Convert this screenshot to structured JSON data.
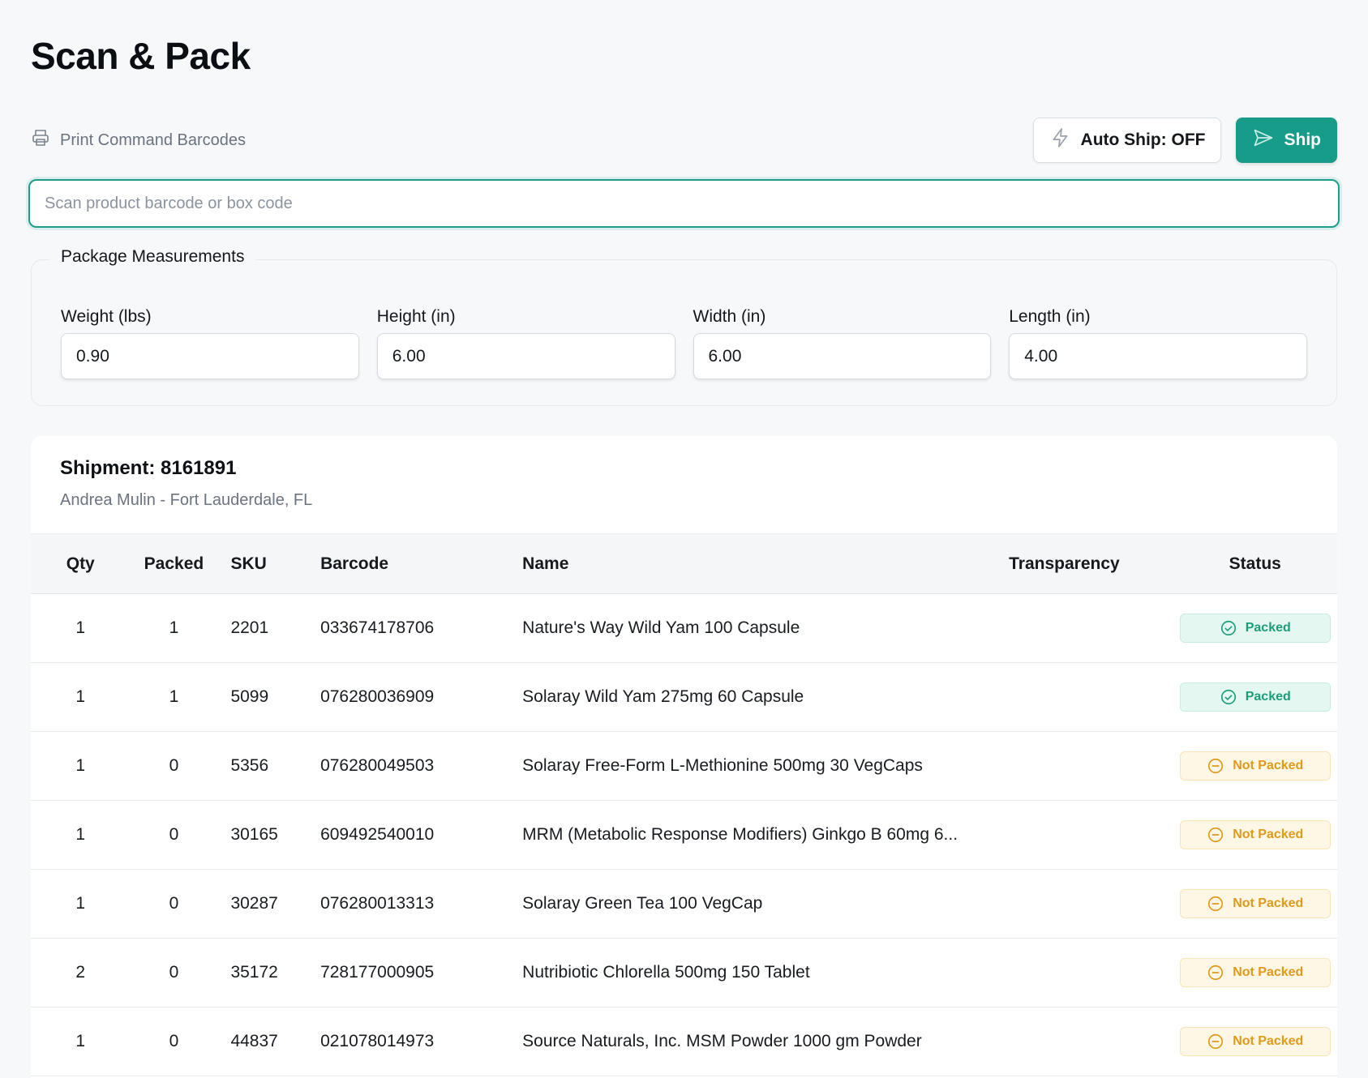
{
  "page": {
    "title": "Scan & Pack"
  },
  "toolbar": {
    "print_label": "Print Command Barcodes",
    "auto_ship_label": "Auto Ship: OFF",
    "ship_label": "Ship"
  },
  "scan": {
    "placeholder": "Scan product barcode or box code",
    "value": ""
  },
  "measurements": {
    "legend": "Package Measurements",
    "fields": [
      {
        "label": "Weight (lbs)",
        "value": "0.90"
      },
      {
        "label": "Height (in)",
        "value": "6.00"
      },
      {
        "label": "Width (in)",
        "value": "6.00"
      },
      {
        "label": "Length (in)",
        "value": "4.00"
      }
    ]
  },
  "shipment": {
    "title": "Shipment: 8161891",
    "subtitle": "Andrea Mulin - Fort Lauderdale, FL",
    "columns": [
      "Qty",
      "Packed",
      "SKU",
      "Barcode",
      "Name",
      "Transparency",
      "Status"
    ],
    "rows": [
      {
        "qty": "1",
        "packed": "1",
        "sku": "2201",
        "barcode": "033674178706",
        "name": "Nature's Way Wild Yam 100 Capsule",
        "transparency": "",
        "status": "Packed",
        "status_kind": "packed"
      },
      {
        "qty": "1",
        "packed": "1",
        "sku": "5099",
        "barcode": "076280036909",
        "name": "Solaray Wild Yam 275mg 60 Capsule",
        "transparency": "",
        "status": "Packed",
        "status_kind": "packed"
      },
      {
        "qty": "1",
        "packed": "0",
        "sku": "5356",
        "barcode": "076280049503",
        "name": "Solaray Free-Form L-Methionine 500mg 30 VegCaps",
        "transparency": "",
        "status": "Not Packed",
        "status_kind": "notpacked"
      },
      {
        "qty": "1",
        "packed": "0",
        "sku": "30165",
        "barcode": "609492540010",
        "name": "MRM (Metabolic Response Modifiers) Ginkgo B 60mg 6...",
        "transparency": "",
        "status": "Not Packed",
        "status_kind": "notpacked"
      },
      {
        "qty": "1",
        "packed": "0",
        "sku": "30287",
        "barcode": "076280013313",
        "name": "Solaray Green Tea 100 VegCap",
        "transparency": "",
        "status": "Not Packed",
        "status_kind": "notpacked"
      },
      {
        "qty": "2",
        "packed": "0",
        "sku": "35172",
        "barcode": "728177000905",
        "name": "Nutribiotic Chlorella 500mg 150 Tablet",
        "transparency": "",
        "status": "Not Packed",
        "status_kind": "notpacked"
      },
      {
        "qty": "1",
        "packed": "0",
        "sku": "44837",
        "barcode": "021078014973",
        "name": "Source Naturals, Inc. MSM Powder 1000 gm Powder",
        "transparency": "",
        "status": "Not Packed",
        "status_kind": "notpacked"
      }
    ]
  },
  "colors": {
    "accent": "#169c88",
    "packed": "#1b9e78",
    "not_packed": "#e09a1a"
  },
  "icons": {
    "print": "printer-icon",
    "auto_ship": "lightning-icon",
    "ship": "send-icon",
    "packed": "check-circle-icon",
    "not_packed": "minus-circle-icon"
  }
}
